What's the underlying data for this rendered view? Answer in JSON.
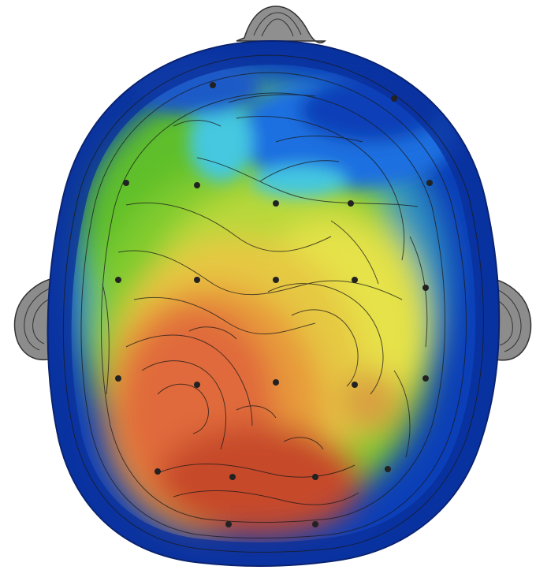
{
  "scene": {
    "subject": "scalp-topographic-map",
    "colors": {
      "background": "#ffffff",
      "scalp_edge": "#0a2f9a",
      "deep_blue": "#0b3fb8",
      "blue": "#1f6fe0",
      "cyan": "#45c8e0",
      "green": "#5fbf2a",
      "yellow_green": "#b8d83a",
      "yellow": "#e6e24a",
      "orange": "#e79a3a",
      "red": "#e05a3a",
      "dark_red": "#b8402a",
      "contour": "#1a1a1a",
      "ear_gray": "#8c8c8c",
      "nose_gray": "#9a9a9a"
    }
  }
}
